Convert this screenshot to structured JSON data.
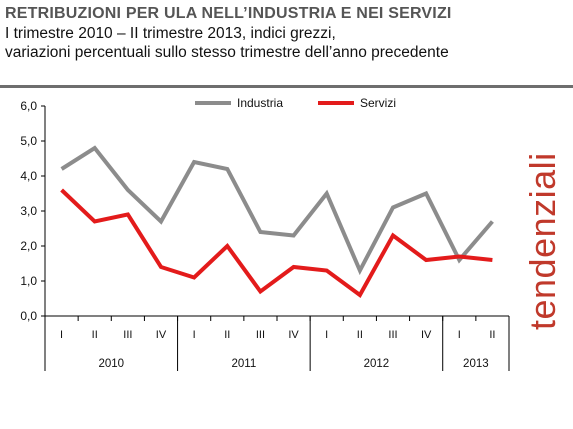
{
  "header": {
    "title": "RETRIBUZIONI PER ULA NELL’INDUSTRIA E NEI SERVIZI",
    "subtitle_line1": "I trimestre 2010 – II trimestre 2013, indici grezzi,",
    "subtitle_line2": "variazioni percentuali sullo stesso trimestre dell’anno precedente"
  },
  "side_label": "tendenziali",
  "colors": {
    "industria": "#8c8c8c",
    "servizi": "#e31b1b",
    "side_label": "#c0392b",
    "axis": "#000000"
  },
  "chart_data": {
    "type": "line",
    "title": "RETRIBUZIONI PER ULA NELL’INDUSTRIA E NEI SERVIZI",
    "categories": [
      "I",
      "II",
      "III",
      "IV",
      "I",
      "II",
      "III",
      "IV",
      "I",
      "II",
      "III",
      "IV",
      "I",
      "II"
    ],
    "years": [
      {
        "label": "2010",
        "start": 0,
        "count": 4
      },
      {
        "label": "2011",
        "start": 4,
        "count": 4
      },
      {
        "label": "2012",
        "start": 8,
        "count": 4
      },
      {
        "label": "2013",
        "start": 12,
        "count": 2
      }
    ],
    "series": [
      {
        "name": "Industria",
        "color": "#8c8c8c",
        "values": [
          4.2,
          4.8,
          3.6,
          2.7,
          4.4,
          4.2,
          2.4,
          2.3,
          3.5,
          1.3,
          3.1,
          3.5,
          1.6,
          2.7
        ]
      },
      {
        "name": "Servizi",
        "color": "#e31b1b",
        "values": [
          3.6,
          2.7,
          2.9,
          1.4,
          1.1,
          2.0,
          0.7,
          1.4,
          1.3,
          0.6,
          2.3,
          1.6,
          1.7,
          1.6
        ]
      }
    ],
    "ylim": [
      0,
      6
    ],
    "yticks": [
      0,
      1,
      2,
      3,
      4,
      5,
      6
    ],
    "ytick_labels": [
      "0,0",
      "1,0",
      "2,0",
      "3,0",
      "4,0",
      "5,0",
      "6,0"
    ],
    "legend_position": "top-center",
    "grid": false
  }
}
